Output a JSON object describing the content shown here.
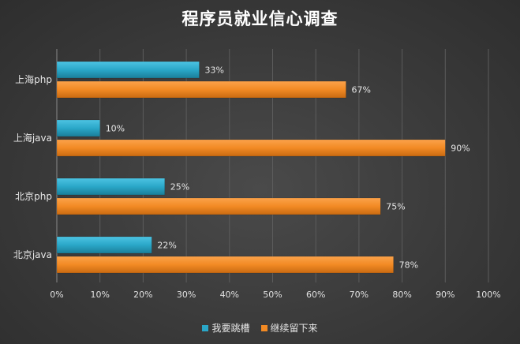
{
  "chart_data": {
    "type": "bar",
    "orientation": "horizontal",
    "title": "程序员就业信心调查",
    "categories": [
      "上海php",
      "上海java",
      "北京php",
      "北京java"
    ],
    "series": [
      {
        "name": "我要跳槽",
        "values": [
          33,
          10,
          25,
          22
        ],
        "color": "#2aa7c8"
      },
      {
        "name": "继续留下来",
        "values": [
          67,
          90,
          75,
          78
        ],
        "color": "#f28a24"
      }
    ],
    "data_labels": [
      [
        "33%",
        "10%",
        "25%",
        "22%"
      ],
      [
        "67%",
        "90%",
        "75%",
        "78%"
      ]
    ],
    "x_ticks": [
      "0%",
      "10%",
      "20%",
      "30%",
      "40%",
      "50%",
      "60%",
      "70%",
      "80%",
      "90%",
      "100%"
    ],
    "xlim": [
      0,
      100
    ],
    "grid": "vertical",
    "legend_position": "bottom"
  }
}
